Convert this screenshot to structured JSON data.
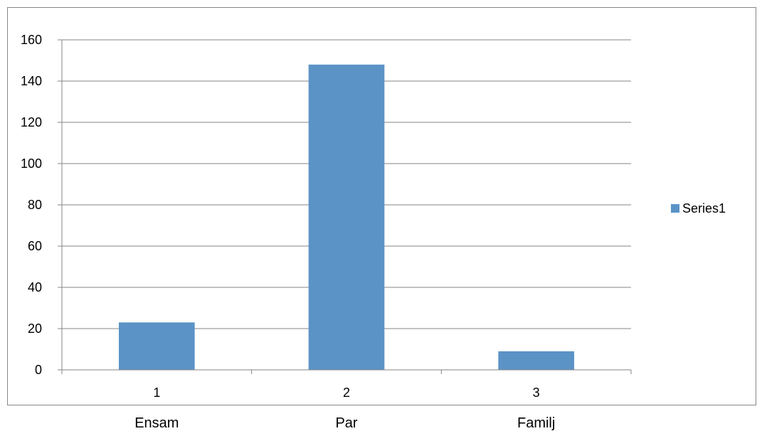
{
  "chart_data": {
    "type": "bar",
    "categories": [
      "1",
      "2",
      "3"
    ],
    "series": [
      {
        "name": "Series1",
        "values": [
          23,
          148,
          9
        ]
      }
    ],
    "ylim": [
      0,
      160
    ],
    "yticks": [
      0,
      20,
      40,
      60,
      80,
      100,
      120,
      140,
      160
    ],
    "grid": true,
    "legend": "right",
    "bar_color": "#5B93C7",
    "title": "",
    "xlabel": "",
    "ylabel": ""
  },
  "below_labels": [
    "Ensam",
    "Par",
    "Familj"
  ]
}
